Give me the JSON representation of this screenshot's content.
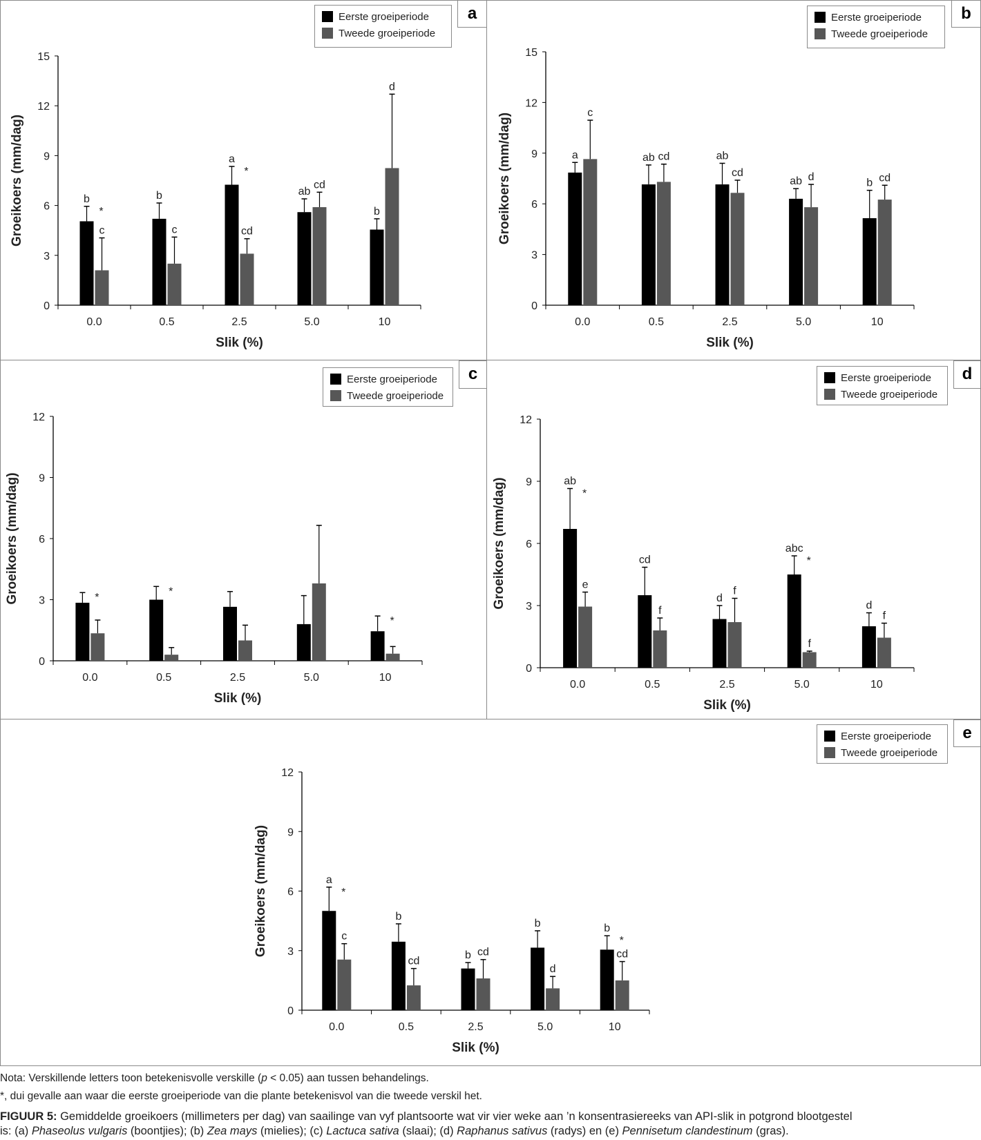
{
  "chart_data": [
    {
      "panel": "a",
      "type": "bar",
      "xlabel": "Slik (%)",
      "ylabel": "Groeikoers (mm/dag)",
      "ylim": [
        0,
        15
      ],
      "yticks": [
        "0",
        "3",
        "6",
        "9",
        "12",
        "15"
      ],
      "categories": [
        "0.0",
        "0.5",
        "2.5",
        "5.0",
        "10"
      ],
      "series": [
        {
          "name": "Eerste groeiperiode",
          "color": "#000000",
          "values": [
            5.05,
            5.2,
            7.25,
            5.6,
            4.55
          ],
          "error": [
            0.9,
            0.95,
            1.1,
            0.8,
            0.65
          ],
          "letters": [
            "b",
            "b",
            "a",
            "ab",
            "b"
          ]
        },
        {
          "name": "Tweede groeiperiode",
          "color": "#575757",
          "values": [
            2.1,
            2.5,
            3.1,
            5.9,
            8.25
          ],
          "error": [
            1.95,
            1.6,
            0.9,
            0.9,
            4.45
          ],
          "letters": [
            "c",
            "c",
            "cd",
            "cd",
            "d"
          ]
        }
      ],
      "asterisks": [
        true,
        false,
        true,
        false,
        false
      ]
    },
    {
      "panel": "b",
      "type": "bar",
      "xlabel": "Slik (%)",
      "ylabel": "Groeikoers (mm/dag)",
      "ylim": [
        0,
        15
      ],
      "yticks": [
        "0",
        "3",
        "6",
        "9",
        "12",
        "15"
      ],
      "categories": [
        "0.0",
        "0.5",
        "2.5",
        "5.0",
        "10"
      ],
      "series": [
        {
          "name": "Eerste groeiperiode",
          "color": "#000000",
          "values": [
            7.85,
            7.15,
            7.15,
            6.3,
            5.15
          ],
          "error": [
            0.6,
            1.15,
            1.25,
            0.6,
            1.65
          ],
          "letters": [
            "a",
            "ab",
            "ab",
            "ab",
            "b"
          ]
        },
        {
          "name": "Tweede groeiperiode",
          "color": "#575757",
          "values": [
            8.65,
            7.3,
            6.65,
            5.8,
            6.25
          ],
          "error": [
            2.3,
            1.05,
            0.75,
            1.35,
            0.85
          ],
          "letters": [
            "c",
            "cd",
            "cd",
            "d",
            "cd"
          ]
        }
      ],
      "asterisks": [
        false,
        false,
        false,
        false,
        false
      ]
    },
    {
      "panel": "c",
      "type": "bar",
      "xlabel": "Slik (%)",
      "ylabel": "Groeikoers (mm/dag)",
      "ylim": [
        0,
        12
      ],
      "yticks": [
        "0",
        "3",
        "6",
        "9",
        "12"
      ],
      "categories": [
        "0.0",
        "0.5",
        "2.5",
        "5.0",
        "10"
      ],
      "series": [
        {
          "name": "Eerste groeiperiode",
          "color": "#000000",
          "values": [
            2.85,
            3.0,
            2.65,
            1.8,
            1.45
          ],
          "error": [
            0.5,
            0.65,
            0.75,
            1.4,
            0.75
          ],
          "letters": [
            "",
            "",
            "",
            "",
            ""
          ]
        },
        {
          "name": "Tweede groeiperiode",
          "color": "#575757",
          "values": [
            1.35,
            0.3,
            1.0,
            3.8,
            0.35
          ],
          "error": [
            0.65,
            0.35,
            0.75,
            2.85,
            0.35
          ],
          "letters": [
            "",
            "",
            "",
            "",
            ""
          ]
        }
      ],
      "asterisks": [
        true,
        true,
        false,
        false,
        true
      ]
    },
    {
      "panel": "d",
      "type": "bar",
      "xlabel": "Slik (%)",
      "ylabel": "Groeikoers (mm/dag)",
      "ylim": [
        0,
        12
      ],
      "yticks": [
        "0",
        "3",
        "6",
        "9",
        "12"
      ],
      "categories": [
        "0.0",
        "0.5",
        "2.5",
        "5.0",
        "10"
      ],
      "series": [
        {
          "name": "Eerste groeiperiode",
          "color": "#000000",
          "values": [
            6.7,
            3.5,
            2.35,
            4.5,
            2.0
          ],
          "error": [
            1.95,
            1.35,
            0.65,
            0.9,
            0.65
          ],
          "letters": [
            "ab",
            "cd",
            "d",
            "abc",
            "d"
          ]
        },
        {
          "name": "Tweede groeiperiode",
          "color": "#575757",
          "values": [
            2.95,
            1.8,
            2.2,
            0.75,
            1.45
          ],
          "error": [
            0.7,
            0.6,
            1.15,
            0.05,
            0.7
          ],
          "letters": [
            "e",
            "f",
            "f",
            "f",
            "f"
          ]
        }
      ],
      "asterisks": [
        true,
        false,
        false,
        true,
        false
      ]
    },
    {
      "panel": "e",
      "type": "bar",
      "xlabel": "Slik (%)",
      "ylabel": "Groeikoers (mm/dag)",
      "ylim": [
        0,
        12
      ],
      "yticks": [
        "0",
        "3",
        "6",
        "9",
        "12"
      ],
      "categories": [
        "0.0",
        "0.5",
        "2.5",
        "5.0",
        "10"
      ],
      "series": [
        {
          "name": "Eerste groeiperiode",
          "color": "#000000",
          "values": [
            5.0,
            3.45,
            2.1,
            3.15,
            3.05
          ],
          "error": [
            1.2,
            0.9,
            0.3,
            0.85,
            0.7
          ],
          "letters": [
            "a",
            "b",
            "b",
            "b",
            "b"
          ]
        },
        {
          "name": "Tweede groeiperiode",
          "color": "#575757",
          "values": [
            2.55,
            1.25,
            1.6,
            1.1,
            1.5
          ],
          "error": [
            0.8,
            0.85,
            0.95,
            0.6,
            0.95
          ],
          "letters": [
            "c",
            "cd",
            "cd",
            "d",
            "cd"
          ]
        }
      ],
      "asterisks": [
        true,
        false,
        false,
        false,
        true
      ]
    }
  ],
  "notes": {
    "nota_prefix": "Nota: Verskillende letters toon betekenisvolle verskille (",
    "nota_p": "p",
    "nota_suffix": " < 0.05) aan tussen behandelings.",
    "asterisk_note": "*, dui gevalle aan waar die eerste groeiperiode van die plante betekenisvol van die tweede verskil het."
  },
  "caption": {
    "label": "FIGUUR 5:",
    "line1": " Gemiddelde groeikoers (millimeters per dag) van saailinge van vyf plantsoorte wat vir vier weke aan ’n konsentrasiereeks van API-slik in potgrond blootgestel",
    "l2a": "is: (a) ",
    "sp_a": "Phaseolus vulgaris",
    "l2b": " (boontjies); (b) ",
    "sp_b": "Zea mays",
    "l2c": " (mielies); (c) ",
    "sp_c": "Lactuca sativa",
    "l2d": " (slaai); (d) ",
    "sp_d": "Raphanus sativus",
    "l2e": " (radys) en (e) ",
    "sp_e": "Pennisetum clandestinum",
    "l2f": " (gras)."
  }
}
